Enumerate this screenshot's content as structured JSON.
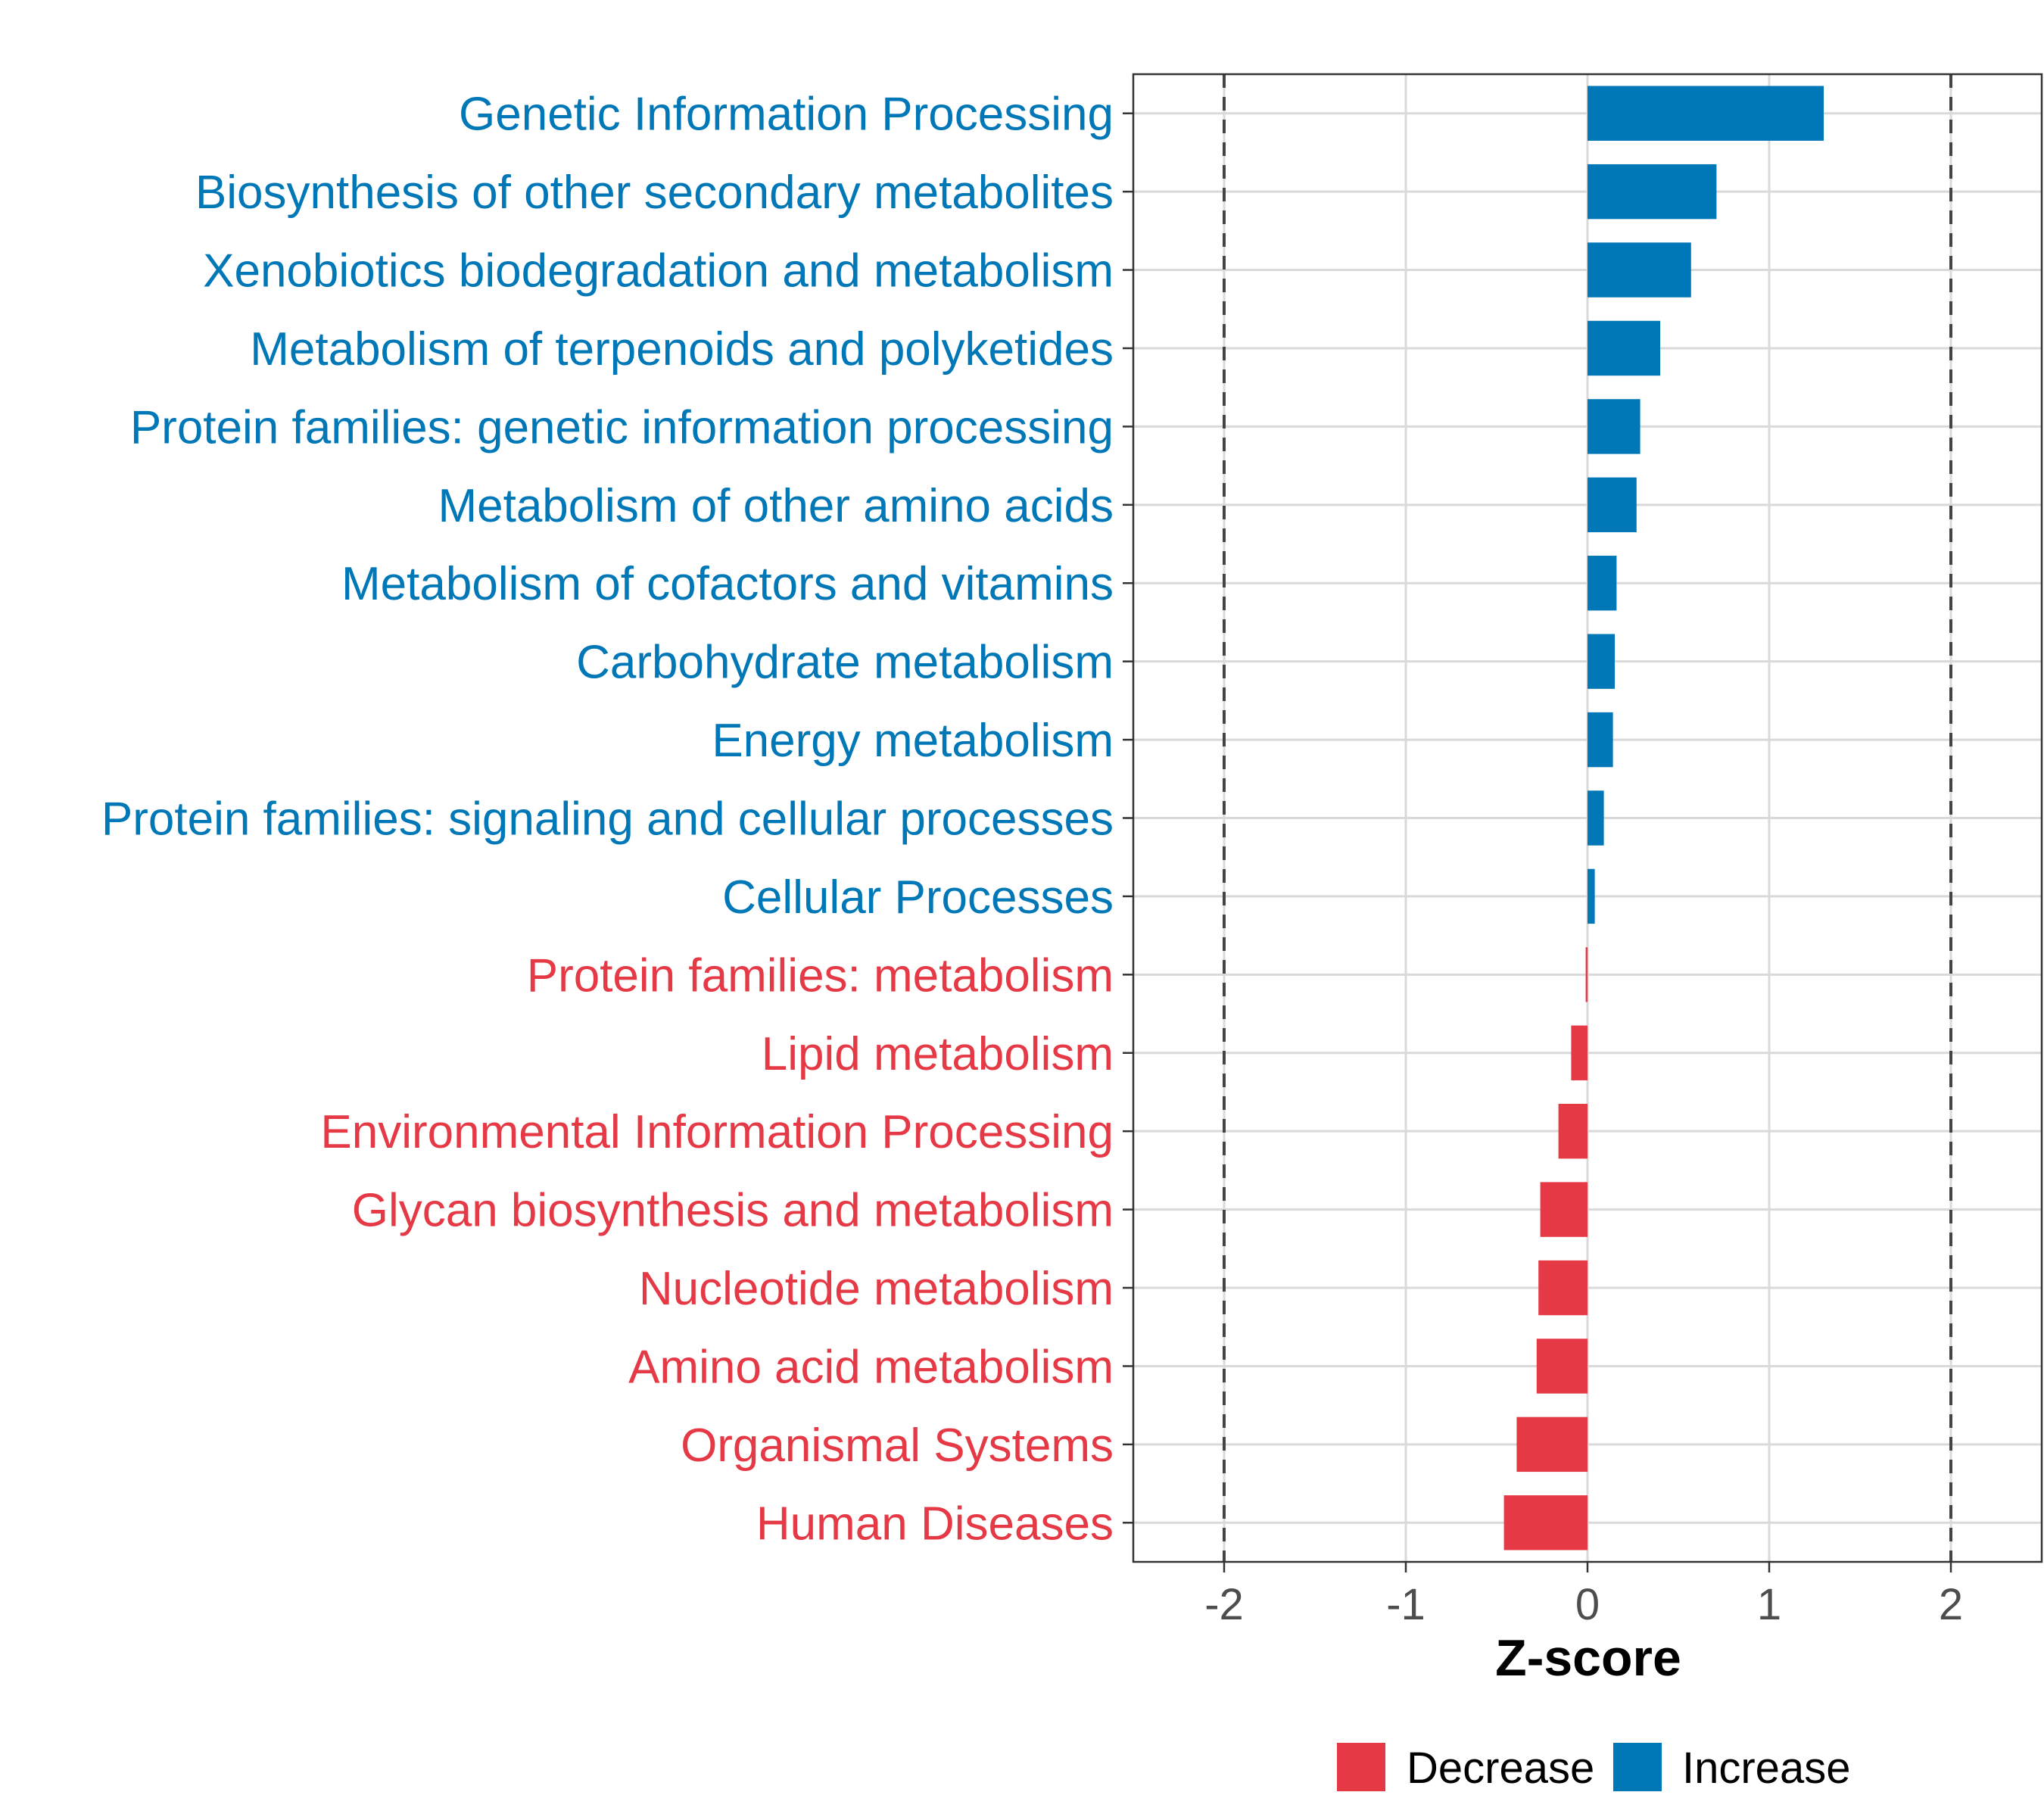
{
  "chart_data": {
    "type": "bar",
    "orientation": "horizontal",
    "title": "",
    "xlabel": "Z-score",
    "ylabel": "",
    "xlim": [
      -2.5,
      2.5
    ],
    "x_ticks": [
      -2,
      -1,
      0,
      1,
      2
    ],
    "x_tick_labels": [
      "-2",
      "-1",
      "0",
      "1",
      "2"
    ],
    "reference_lines": [
      -2,
      2
    ],
    "grid": true,
    "legend_position": "bottom",
    "legend": [
      {
        "label": "Decrease",
        "color": "#e63946"
      },
      {
        "label": "Increase",
        "color": "#0077b6"
      }
    ],
    "categories": [
      "Genetic Information Processing",
      "Biosynthesis of other secondary metabolites",
      "Xenobiotics biodegradation and metabolism",
      "Metabolism of terpenoids and polyketides",
      "Protein families: genetic information processing",
      "Metabolism of other amino acids",
      "Metabolism of cofactors and vitamins",
      "Carbohydrate metabolism",
      "Energy metabolism",
      "Protein families: signaling and cellular processes",
      "Cellular Processes",
      "Protein families: metabolism",
      "Lipid metabolism",
      "Environmental Information Processing",
      "Glycan biosynthesis and metabolism",
      "Nucleotide metabolism",
      "Amino acid metabolism",
      "Organismal Systems",
      "Human Diseases"
    ],
    "values": [
      1.3,
      0.71,
      0.57,
      0.4,
      0.29,
      0.27,
      0.16,
      0.15,
      0.14,
      0.09,
      0.04,
      -0.01,
      -0.09,
      -0.16,
      -0.26,
      -0.27,
      -0.28,
      -0.39,
      -0.46
    ],
    "group": [
      "Increase",
      "Increase",
      "Increase",
      "Increase",
      "Increase",
      "Increase",
      "Increase",
      "Increase",
      "Increase",
      "Increase",
      "Increase",
      "Decrease",
      "Decrease",
      "Decrease",
      "Decrease",
      "Decrease",
      "Decrease",
      "Decrease",
      "Decrease"
    ]
  }
}
